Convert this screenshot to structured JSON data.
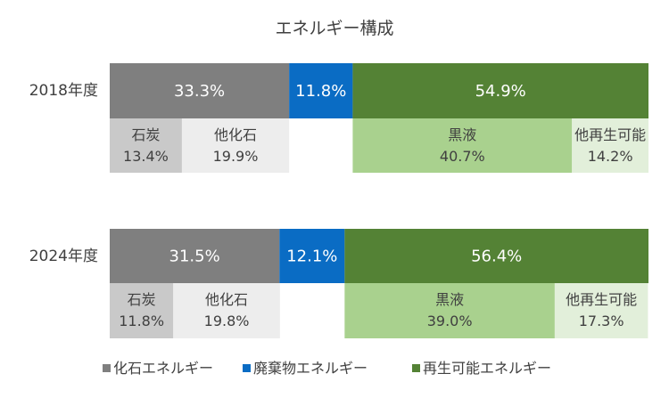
{
  "chart_data": {
    "type": "bar",
    "title": "エネルギー構成",
    "categories": [
      "2018年度",
      "2024年度"
    ],
    "series": [
      {
        "name": "化石エネルギー",
        "color": "#7f7f7f",
        "values": [
          33.3,
          31.5
        ]
      },
      {
        "name": "廃棄物エネルギー",
        "color": "#0a6cc4",
        "values": [
          11.8,
          12.1
        ]
      },
      {
        "name": "再生可能エネルギー",
        "color": "#548235",
        "values": [
          54.9,
          56.4
        ]
      }
    ],
    "breakdown": [
      {
        "parent": "化石エネルギー",
        "name": "石炭",
        "color": "#c9c9c9",
        "values": [
          13.4,
          11.8
        ]
      },
      {
        "parent": "化石エネルギー",
        "name": "他化石",
        "color": "#ededed",
        "values": [
          19.9,
          19.8
        ]
      },
      {
        "parent": "再生可能エネルギー",
        "name": "黒液",
        "color": "#a9d18e",
        "values": [
          40.7,
          39.0
        ]
      },
      {
        "parent": "再生可能エネルギー",
        "name": "他再生可能",
        "color": "#e2efda",
        "values": [
          14.2,
          17.3
        ]
      }
    ],
    "value_format": "{v}%",
    "legend_position": "bottom",
    "xlim": [
      0,
      100
    ]
  }
}
